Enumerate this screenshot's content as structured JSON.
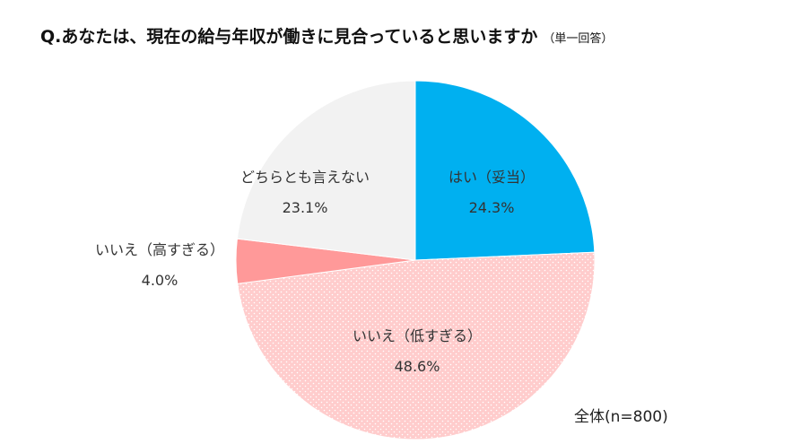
{
  "chart_data": {
    "type": "pie",
    "title": "Q.あなたは、現在の給与年収が働きに見合っていると思いますか",
    "subtitle": "（単一回答）",
    "note": "全体(n=800)",
    "start": "top",
    "direction": "clockwise",
    "slices": [
      {
        "label": "はい（妥当）",
        "value": 24.3,
        "value_label": "24.3%",
        "color": "#00B0F0"
      },
      {
        "label": "いいえ（低すぎる）",
        "value": 48.6,
        "value_label": "48.6%",
        "color": "#FFCCCC",
        "pattern": "dots"
      },
      {
        "label": "いいえ（高すぎる）",
        "value": 4.0,
        "value_label": "4.0%",
        "color": "#FF9999"
      },
      {
        "label": "どちらとも言えない",
        "value": 23.1,
        "value_label": "23.1%",
        "color": "#F2F2F2"
      }
    ]
  }
}
